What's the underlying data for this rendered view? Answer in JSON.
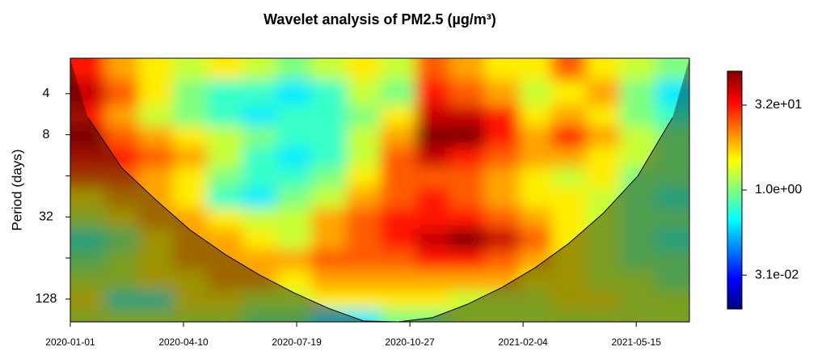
{
  "chart_data": {
    "type": "heatmap",
    "title": "Wavelet analysis of PM2.5 (µg/m³)",
    "ylabel": "Period (days)",
    "xlim": [
      "2020-01-01",
      "2021-07-01"
    ],
    "xticks": [
      "2020-01-01",
      "2020-04-10",
      "2020-07-19",
      "2020-10-27",
      "2021-02-04",
      "2021-05-15"
    ],
    "ylim": [
      2.2,
      188
    ],
    "ylog": true,
    "yreversed": true,
    "yticks": [
      4,
      8,
      32,
      128
    ],
    "yminorticks": [
      16,
      64
    ],
    "x": [
      "2020-01-01",
      "2020-02-01",
      "2020-03-01",
      "2020-04-01",
      "2020-05-01",
      "2020-06-01",
      "2020-07-01",
      "2020-08-01",
      "2020-09-01",
      "2020-10-01",
      "2020-11-01",
      "2020-12-01",
      "2021-01-01",
      "2021-02-01",
      "2021-03-01",
      "2021-04-01",
      "2021-05-01",
      "2021-06-01"
    ],
    "y": [
      2.5,
      4,
      6,
      8,
      12,
      16,
      24,
      32,
      48,
      64,
      96,
      128,
      180
    ],
    "z": [
      [
        32,
        8,
        4,
        2,
        4,
        2,
        1,
        2,
        4,
        2,
        16,
        8,
        4,
        4,
        16,
        4,
        2,
        1
      ],
      [
        64,
        16,
        4,
        1,
        0.5,
        0.5,
        0.25,
        0.5,
        2,
        1,
        32,
        16,
        8,
        2,
        4,
        8,
        1,
        0.25
      ],
      [
        32,
        8,
        2,
        1,
        0.5,
        0.25,
        0.5,
        0.5,
        1,
        4,
        64,
        64,
        32,
        4,
        8,
        4,
        1,
        0.5
      ],
      [
        64,
        16,
        8,
        4,
        2,
        1,
        0.5,
        0.5,
        2,
        8,
        128,
        128,
        32,
        8,
        32,
        8,
        2,
        1
      ],
      [
        32,
        32,
        16,
        8,
        2,
        0.5,
        0.25,
        0.5,
        2,
        16,
        64,
        32,
        16,
        8,
        8,
        4,
        2,
        1
      ],
      [
        16,
        16,
        8,
        4,
        1,
        0.5,
        0.5,
        1,
        4,
        16,
        16,
        16,
        8,
        4,
        2,
        4,
        1,
        1
      ],
      [
        4,
        8,
        8,
        4,
        0.5,
        0.25,
        1,
        2,
        8,
        16,
        32,
        16,
        8,
        4,
        4,
        2,
        1,
        0.5
      ],
      [
        2,
        4,
        8,
        8,
        4,
        2,
        2,
        8,
        16,
        32,
        32,
        32,
        16,
        8,
        4,
        2,
        1,
        1
      ],
      [
        0.5,
        1,
        4,
        8,
        8,
        4,
        2,
        8,
        16,
        32,
        64,
        128,
        64,
        16,
        4,
        2,
        1,
        0.5
      ],
      [
        1,
        2,
        4,
        8,
        8,
        8,
        8,
        16,
        16,
        16,
        32,
        32,
        16,
        8,
        4,
        2,
        1,
        1
      ],
      [
        2,
        2,
        4,
        4,
        8,
        8,
        4,
        8,
        8,
        8,
        8,
        8,
        8,
        4,
        4,
        2,
        2,
        1
      ],
      [
        4,
        0.5,
        0.5,
        4,
        4,
        2,
        2,
        4,
        4,
        4,
        4,
        2,
        2,
        2,
        4,
        4,
        2,
        2
      ],
      [
        2,
        2,
        2,
        2,
        2,
        1,
        1,
        0.25,
        0.25,
        1,
        1,
        2,
        2,
        2,
        2,
        2,
        2,
        2
      ]
    ],
    "coi": [
      6,
      14,
      24,
      40,
      60,
      85,
      115,
      150,
      185,
      190,
      175,
      140,
      105,
      75,
      50,
      30,
      16,
      6
    ],
    "zlim": [
      0.0078,
      128
    ],
    "zlog": true,
    "zticks": [
      {
        "value": 32,
        "label": "3.2e+01"
      },
      {
        "value": 1,
        "label": "1.0e+00"
      },
      {
        "value": 0.031,
        "label": "3.1e-02"
      }
    ],
    "colors": [
      "#00007f",
      "#0000ff",
      "#007fff",
      "#00ffff",
      "#7fff7f",
      "#ffff00",
      "#ff7f00",
      "#ff0000",
      "#7f0000"
    ]
  }
}
